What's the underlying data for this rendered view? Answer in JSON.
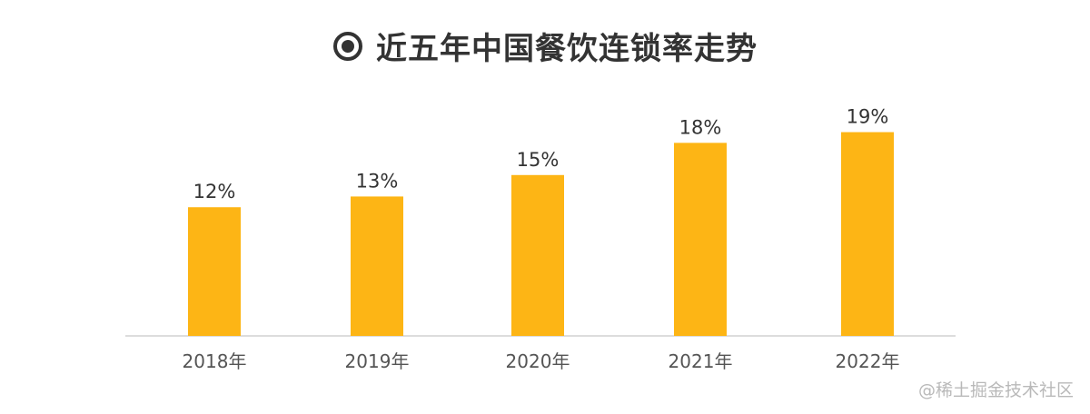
{
  "chart_data": {
    "type": "bar",
    "title": "近五年中国餐饮连锁率走势",
    "categories": [
      "2018年",
      "2019年",
      "2020年",
      "2021年",
      "2022年"
    ],
    "values": [
      12,
      13,
      15,
      18,
      19
    ],
    "value_labels": [
      "12%",
      "13%",
      "15%",
      "18%",
      "19%"
    ],
    "unit": "%",
    "ylim": [
      0,
      21.5
    ],
    "grid": false,
    "bar_color": "#FDB515",
    "axis_color": "#dddddd"
  },
  "title_icon": "radio-target-icon",
  "watermark": "@稀土掘金技术社区"
}
